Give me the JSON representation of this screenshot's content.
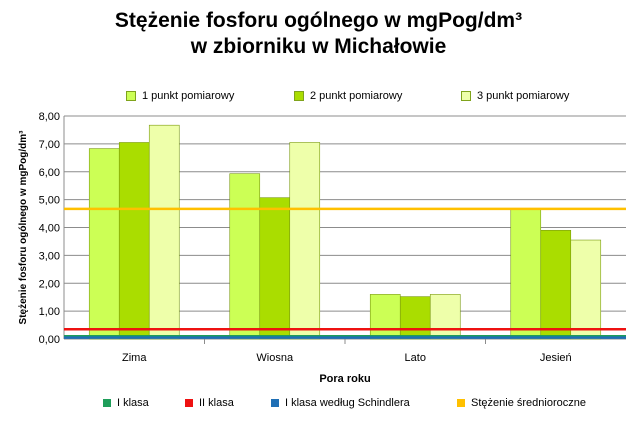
{
  "chart_data": {
    "type": "bar",
    "title_line1": "Stężenie fosforu ogólnego w mgPog/dm³",
    "title_line2": "w zbiorniku w Michałowie",
    "xlabel": "Pora roku",
    "ylabel": "Stężenie fosforu ogólnego w mgPog/dm³",
    "ylim": [
      0,
      8
    ],
    "yticks": [
      "0,00",
      "1,00",
      "2,00",
      "3,00",
      "4,00",
      "5,00",
      "6,00",
      "7,00",
      "8,00"
    ],
    "categories": [
      "Zima",
      "Wiosna",
      "Lato",
      "Jesień"
    ],
    "series": [
      {
        "name": "1 punkt pomiarowy",
        "values": [
          6.83,
          5.93,
          1.6,
          4.67
        ],
        "color": "#ccff55"
      },
      {
        "name": "2 punkt pomiarowy",
        "values": [
          7.05,
          5.07,
          1.52,
          3.9
        ],
        "color": "#aadd00"
      },
      {
        "name": "3 punkt pomiarowy",
        "values": [
          7.67,
          7.05,
          1.6,
          3.55
        ],
        "color": "#eeffaa"
      }
    ],
    "reference_lines": [
      {
        "name": "I klasa",
        "value": 0.1,
        "color": "#1f9e5a"
      },
      {
        "name": "II klasa",
        "value": 0.35,
        "color": "#ee1111"
      },
      {
        "name": "I klasa według Schindlera",
        "value": 0.05,
        "color": "#1f6fb5"
      },
      {
        "name": "Stężenie średnioroczne",
        "value": 4.67,
        "color": "#ffc000"
      }
    ],
    "legend_position": "top",
    "grid": true
  }
}
